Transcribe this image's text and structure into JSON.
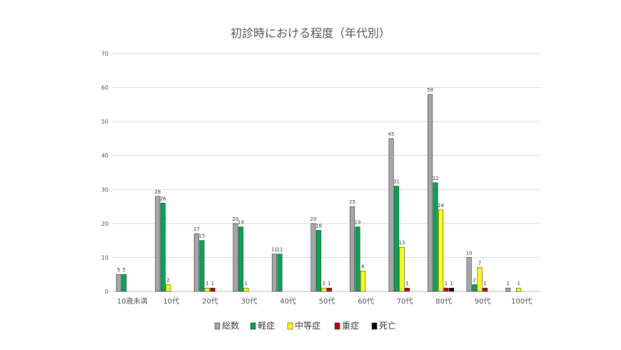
{
  "chart_data": {
    "type": "bar",
    "title": "初診時における程度（年代別）",
    "xlabel": "",
    "ylabel": "",
    "ylim": [
      0,
      70
    ],
    "yticks": [
      0,
      10,
      20,
      30,
      40,
      50,
      60,
      70
    ],
    "grid": true,
    "legend_position": "bottom",
    "categories": [
      "10歳未満",
      "10代",
      "20代",
      "30代",
      "40代",
      "50代",
      "60代",
      "70代",
      "80代",
      "90代",
      "100代"
    ],
    "series": [
      {
        "name": "総数",
        "color": "#a6a6a6",
        "values": [
          5,
          28,
          17,
          20,
          11,
          20,
          25,
          45,
          58,
          10,
          1
        ]
      },
      {
        "name": "軽症",
        "color": "#00a651",
        "values": [
          5,
          26,
          15,
          19,
          11,
          18,
          19,
          31,
          32,
          2,
          null
        ]
      },
      {
        "name": "中等症",
        "color": "#ffff00",
        "values": [
          null,
          2,
          1,
          1,
          null,
          1,
          6,
          13,
          24,
          7,
          1
        ]
      },
      {
        "name": "重症",
        "color": "#c00000",
        "values": [
          null,
          null,
          1,
          null,
          null,
          1,
          null,
          1,
          1,
          1,
          null
        ]
      },
      {
        "name": "死亡",
        "color": "#000000",
        "values": [
          null,
          null,
          null,
          null,
          null,
          null,
          null,
          null,
          1,
          null,
          null
        ]
      }
    ]
  }
}
